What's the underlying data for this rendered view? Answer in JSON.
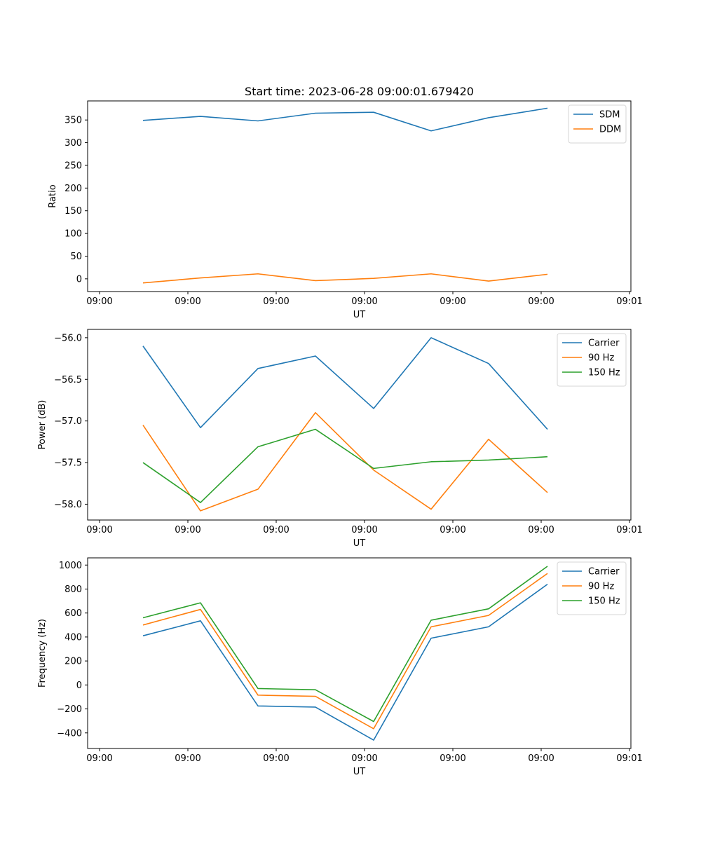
{
  "title": "Start time: 2023-06-28 09:00:01.679420",
  "colors": {
    "blue": "#1f77b4",
    "orange": "#ff7f0e",
    "green": "#2ca02c"
  },
  "chart_data": [
    {
      "type": "line",
      "xlabel": "UT",
      "ylabel": "Ratio",
      "x_tick_labels": [
        "09:00",
        "09:00",
        "09:00",
        "09:00",
        "09:00",
        "09:00",
        "09:01"
      ],
      "y_ticks": [
        0,
        50,
        100,
        150,
        200,
        250,
        300,
        350
      ],
      "ylim": [
        -28,
        392
      ],
      "legend": "top-right",
      "grid": false,
      "series": [
        {
          "name": "SDM",
          "values": [
            349,
            358,
            348,
            365,
            367,
            326,
            355,
            376
          ]
        },
        {
          "name": "DDM",
          "values": [
            -9,
            2,
            11,
            -4,
            1,
            11,
            -5,
            10
          ]
        }
      ]
    },
    {
      "type": "line",
      "xlabel": "UT",
      "ylabel": "Power (dB)",
      "x_tick_labels": [
        "09:00",
        "09:00",
        "09:00",
        "09:00",
        "09:00",
        "09:00",
        "09:01"
      ],
      "y_ticks": [
        "-56.0",
        "-56.5",
        "-57.0",
        "-57.5",
        "-58.0"
      ],
      "ylim": [
        -58.19,
        -55.9
      ],
      "legend": "top-right",
      "grid": false,
      "series": [
        {
          "name": "Carrier",
          "values": [
            -56.1,
            -57.08,
            -56.37,
            -56.22,
            -56.85,
            -56.0,
            -56.31,
            -57.1
          ]
        },
        {
          "name": "90 Hz",
          "values": [
            -57.05,
            -58.08,
            -57.82,
            -56.9,
            -57.59,
            -58.06,
            -57.22,
            -57.86
          ]
        },
        {
          "name": "150 Hz",
          "values": [
            -57.5,
            -57.98,
            -57.31,
            -57.1,
            -57.57,
            -57.49,
            -57.47,
            -57.43
          ]
        }
      ]
    },
    {
      "type": "line",
      "xlabel": "UT",
      "ylabel": "Frequency (Hz)",
      "x_tick_labels": [
        "09:00",
        "09:00",
        "09:00",
        "09:00",
        "09:00",
        "09:00",
        "09:01"
      ],
      "y_ticks": [
        -400,
        -200,
        0,
        200,
        400,
        600,
        800,
        1000
      ],
      "ylim": [
        -530,
        1060
      ],
      "legend": "top-right",
      "grid": false,
      "series": [
        {
          "name": "Carrier",
          "values": [
            410,
            535,
            -175,
            -185,
            -460,
            390,
            485,
            840
          ]
        },
        {
          "name": "90 Hz",
          "values": [
            500,
            630,
            -85,
            -95,
            -365,
            485,
            580,
            930
          ]
        },
        {
          "name": "150 Hz",
          "values": [
            560,
            685,
            -30,
            -40,
            -305,
            540,
            635,
            990
          ]
        }
      ]
    }
  ]
}
